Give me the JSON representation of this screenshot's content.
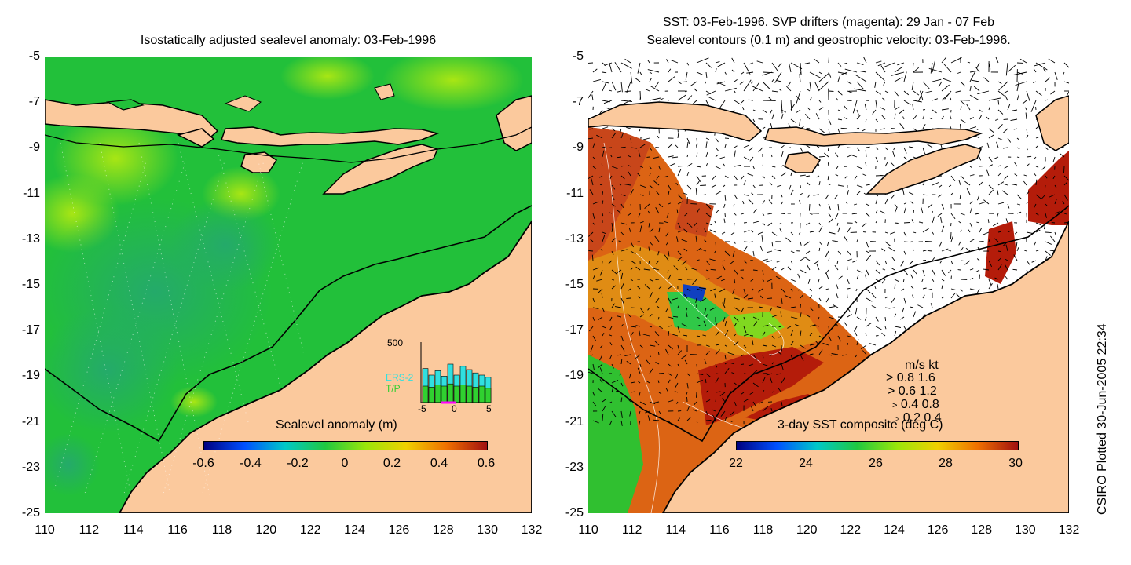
{
  "left_panel": {
    "title": "Isostatically adjusted sealevel anomaly: 03-Feb-1996",
    "colorbar": {
      "title": "Sealevel anomaly (m)",
      "labels": [
        "-0.6",
        "-0.4",
        "-0.2",
        "0",
        "0.2",
        "0.4",
        "0.6"
      ],
      "colors": [
        "#00007f",
        "#0050ff",
        "#00c8c8",
        "#20c840",
        "#9ae60a",
        "#f0d000",
        "#f07000",
        "#a01010"
      ]
    },
    "histogram": {
      "ymax_label": "500",
      "series": [
        {
          "name": "ERS-2",
          "color": "#30e0e0"
        },
        {
          "name": "T/P",
          "color": "#30d030"
        }
      ],
      "xlabels": [
        "-5",
        "0",
        "5"
      ]
    }
  },
  "right_panel": {
    "title_line1": "SST: 03-Feb-1996. SVP drifters (magenta): 29 Jan - 07 Feb",
    "title_line2": "Sealevel contours (0.1 m) and geostrophic velocity: 03-Feb-1996.",
    "colorbar": {
      "title": "3-day SST composite (deg C)",
      "labels": [
        "22",
        "24",
        "26",
        "28",
        "30"
      ],
      "colors": [
        "#00007f",
        "#0050ff",
        "#00c8c8",
        "#20c840",
        "#9ae60a",
        "#f0d000",
        "#f07000",
        "#a01010"
      ]
    },
    "velocity_legend": {
      "header": "m/s  kt",
      "rows": [
        "0.8  1.6",
        "0.6  1.2",
        "0.4  0.8",
        "0.2  0.4"
      ]
    }
  },
  "axes": {
    "y_labels": [
      "-5",
      "-7",
      "-9",
      "-11",
      "-13",
      "-15",
      "-17",
      "-19",
      "-21",
      "-23",
      "-25"
    ],
    "x_labels": [
      "110",
      "112",
      "114",
      "116",
      "118",
      "120",
      "122",
      "124",
      "126",
      "128",
      "130",
      "132"
    ]
  },
  "credit": "CSIRO Plotted 30-Jun-2005 22:34",
  "colors": {
    "land": "#fbc99d",
    "ocean_green": "#1ec832",
    "ocean_teal": "#28b45a",
    "ocean_yellow": "#a8e614",
    "sst_red": "#b41c0a",
    "sst_orange": "#dc6414"
  }
}
